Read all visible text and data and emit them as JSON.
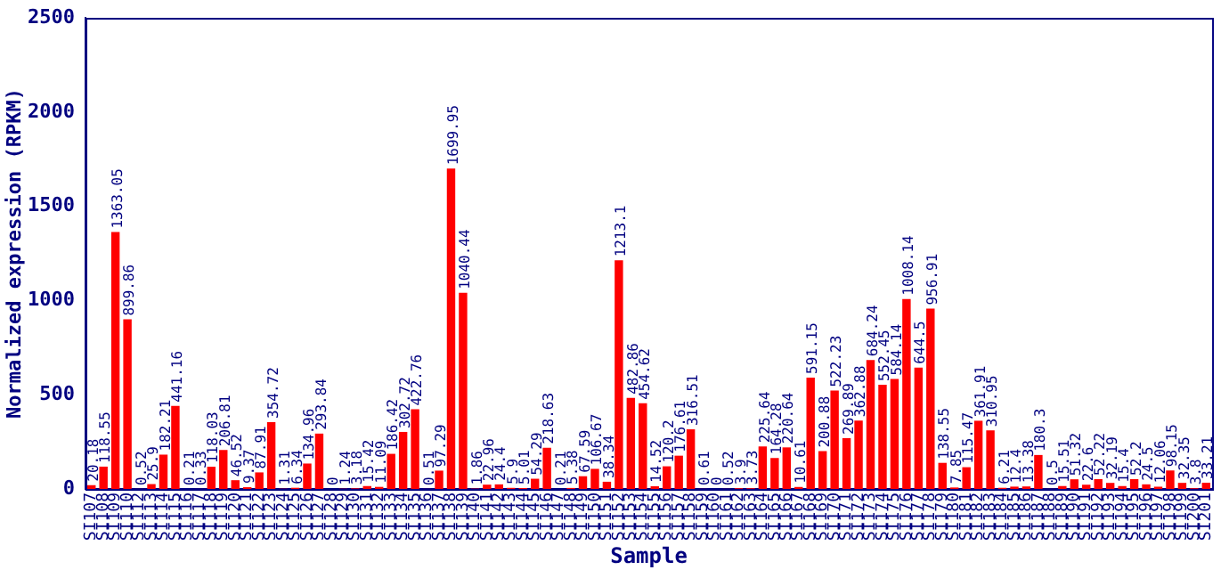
{
  "chart_data": {
    "type": "bar",
    "xlabel": "Sample",
    "ylabel": "Normalized expression (RPKM)",
    "categories": [
      "SI107",
      "SI108",
      "SI109",
      "SI110",
      "SI112",
      "SI113",
      "SI114",
      "SI115",
      "SI116",
      "SI117",
      "SI118",
      "SI119",
      "SI120",
      "SI121",
      "SI122",
      "SI123",
      "SI124",
      "SI125",
      "SI126",
      "SI127",
      "SI128",
      "SI129",
      "SI130",
      "SI131",
      "SI132",
      "SI133",
      "SI134",
      "SI135",
      "SI136",
      "SI137",
      "SI138",
      "SI139",
      "SI140",
      "SI141",
      "SI142",
      "SI143",
      "SI144",
      "SI145",
      "SI146",
      "SI147",
      "SI148",
      "SI149",
      "SI150",
      "SI151",
      "SI152",
      "SI153",
      "SI154",
      "SI155",
      "SI156",
      "SI157",
      "SI158",
      "SI159",
      "SI160",
      "SI161",
      "SI162",
      "SI163",
      "SI164",
      "SI165",
      "SI166",
      "SI167",
      "SI168",
      "SI169",
      "SI170",
      "SI171",
      "SI172",
      "SI173",
      "SI174",
      "SI175",
      "SI176",
      "SI177",
      "SI178",
      "SI179",
      "SI180",
      "SI181",
      "SI182",
      "SI183",
      "SI184",
      "SI185",
      "SI186",
      "SI187",
      "SI188",
      "SI189",
      "SI190",
      "SI191",
      "SI192",
      "SI193",
      "SI194",
      "SI195",
      "SI196",
      "SI197",
      "SI198",
      "SI199",
      "SI200",
      "SI201"
    ],
    "values": [
      20.18,
      118.55,
      1363.05,
      899.86,
      0.52,
      25.9,
      182.21,
      441.16,
      0.21,
      0.33,
      118.03,
      206.81,
      46.52,
      9.37,
      87.91,
      354.72,
      1.31,
      6.34,
      134.96,
      293.84,
      0,
      1.24,
      3.18,
      15.42,
      11.09,
      186.42,
      302.72,
      422.76,
      0.51,
      97.29,
      1699.95,
      1040.44,
      1.86,
      22.96,
      24.4,
      5.9,
      5.01,
      54.29,
      218.63,
      0.21,
      5.38,
      67.59,
      106.67,
      38.34,
      1213.1,
      482.86,
      454.62,
      14.52,
      120.2,
      176.61,
      316.51,
      0.61,
      0,
      0.52,
      3.9,
      3.73,
      225.64,
      164.28,
      220.64,
      10.61,
      591.15,
      200.88,
      522.23,
      269.89,
      362.88,
      684.24,
      552.45,
      584.14,
      1008.14,
      644.5,
      956.91,
      138.55,
      7.85,
      115.47,
      361.91,
      310.95,
      6.21,
      12.4,
      13.38,
      180.3,
      0.5,
      15.51,
      51.32,
      22.6,
      52.22,
      32.19,
      15.4,
      52.2,
      24.5,
      12.06,
      98.15,
      32.35,
      3.8,
      33.21
    ],
    "color": "#ff0000",
    "ylim": [
      0,
      2500
    ],
    "yticks": [
      0,
      500,
      1000,
      1500,
      2000,
      2500
    ],
    "grid": false,
    "data_labels": true
  }
}
